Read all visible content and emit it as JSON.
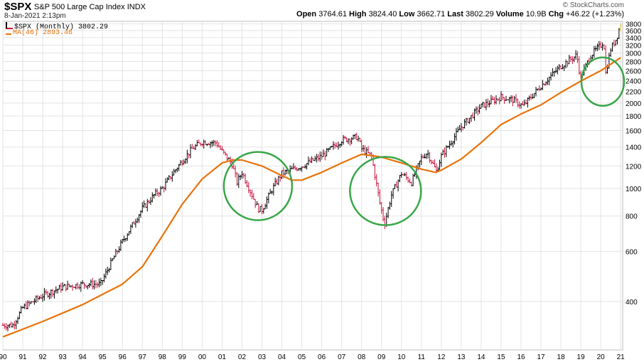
{
  "header": {
    "symbol": "$SPX",
    "description": "S&P 500 Large Cap Index",
    "exchange": "INDX",
    "datetime": "8-Jan-2021 2:13pm",
    "watermark": "© StockCharts.com",
    "open_label": "Open",
    "open_value": "3764.61",
    "high_label": "High",
    "high_value": "3824.40",
    "low_label": "Low",
    "low_value": "3662.71",
    "last_label": "Last",
    "last_value": "3802.29",
    "volume_label": "Volume",
    "volume_value": "10.9B",
    "chg_label": "Chg",
    "chg_value": "+46.22 (+1.23%)"
  },
  "legend": {
    "price": "$SPX (Monthly) 3802.29",
    "ma": "MA(46) 2893.46"
  },
  "colors": {
    "up_bar": "#000000",
    "down_bar": "#c8103c",
    "ma_line": "#e8730c",
    "circle": "#3aa64a",
    "grid": "#e3e3e3",
    "last_bar": "#e0c419"
  },
  "chart_data": {
    "type": "line",
    "series": [
      {
        "name": "$SPX (Monthly)",
        "x": [
          1990,
          1990.5,
          1991,
          1992,
          1993,
          1994,
          1994.9,
          1995.5,
          1996,
          1997,
          1997.6,
          1998,
          1998.6,
          1999,
          1999.5,
          2000,
          2000.7,
          2001,
          2001.5,
          2001.75,
          2002,
          2002.5,
          2002.8,
          2003,
          2003.5,
          2004,
          2005,
          2006,
          2007,
          2007.8,
          2008,
          2008.5,
          2008.9,
          2009.15,
          2009.5,
          2010,
          2010.5,
          2011,
          2011.3,
          2011.75,
          2012,
          2013,
          2014,
          2015,
          2015.6,
          2016.1,
          2016.5,
          2017,
          2018,
          2018.8,
          2018.98,
          2019.5,
          2020,
          2020.15,
          2020.25,
          2020.5,
          2020.8,
          2021
        ],
        "values": [
          330,
          330,
          380,
          420,
          450,
          460,
          460,
          560,
          650,
          850,
          950,
          1000,
          1150,
          1250,
          1380,
          1460,
          1450,
          1350,
          1220,
          1050,
          1140,
          950,
          850,
          840,
          990,
          1130,
          1200,
          1300,
          1480,
          1520,
          1380,
          1300,
          900,
          750,
          950,
          1130,
          1050,
          1280,
          1340,
          1150,
          1300,
          1650,
          1950,
          2100,
          2050,
          1950,
          2100,
          2300,
          2700,
          2950,
          2450,
          2950,
          3200,
          3300,
          2550,
          3100,
          3400,
          3802
        ]
      },
      {
        "name": "MA(46)",
        "x": [
          1990,
          1992,
          1994,
          1996,
          1997,
          1998,
          1999,
          2000,
          2001,
          2001.5,
          2002,
          2003,
          2004,
          2004.5,
          2005,
          2006,
          2007,
          2008,
          2009,
          2010,
          2011,
          2011.7,
          2012,
          2013,
          2014,
          2015,
          2016,
          2017,
          2018,
          2019,
          2020,
          2021
        ],
        "values": [
          300,
          340,
          390,
          460,
          530,
          680,
          880,
          1080,
          1230,
          1260,
          1260,
          1200,
          1110,
          1070,
          1070,
          1140,
          1230,
          1320,
          1290,
          1230,
          1170,
          1140,
          1160,
          1270,
          1450,
          1680,
          1830,
          1970,
          2180,
          2390,
          2600,
          2890
        ]
      }
    ],
    "xlabels": [
      "90",
      "91",
      "92",
      "93",
      "94",
      "95",
      "96",
      "97",
      "98",
      "99",
      "00",
      "01",
      "02",
      "03",
      "04",
      "05",
      "06",
      "07",
      "08",
      "09",
      "10",
      "11",
      "12",
      "13",
      "14",
      "15",
      "16",
      "17",
      "18",
      "19",
      "20",
      "21"
    ],
    "yticks": [
      400,
      600,
      800,
      1000,
      1200,
      1400,
      1600,
      1800,
      2000,
      2200,
      2400,
      2600,
      2800,
      3000,
      3200,
      3400,
      3600,
      3800
    ],
    "ylim": [
      270,
      3880
    ],
    "xlim": [
      1990,
      2021.1
    ],
    "grid": true,
    "y_axis_position": "right",
    "annotations": [
      {
        "type": "circle",
        "x": 2002.8,
        "value": 1020
      },
      {
        "type": "circle",
        "x": 2009.2,
        "value": 980
      },
      {
        "type": "circle",
        "x": 2020.1,
        "value": 2380
      }
    ]
  }
}
